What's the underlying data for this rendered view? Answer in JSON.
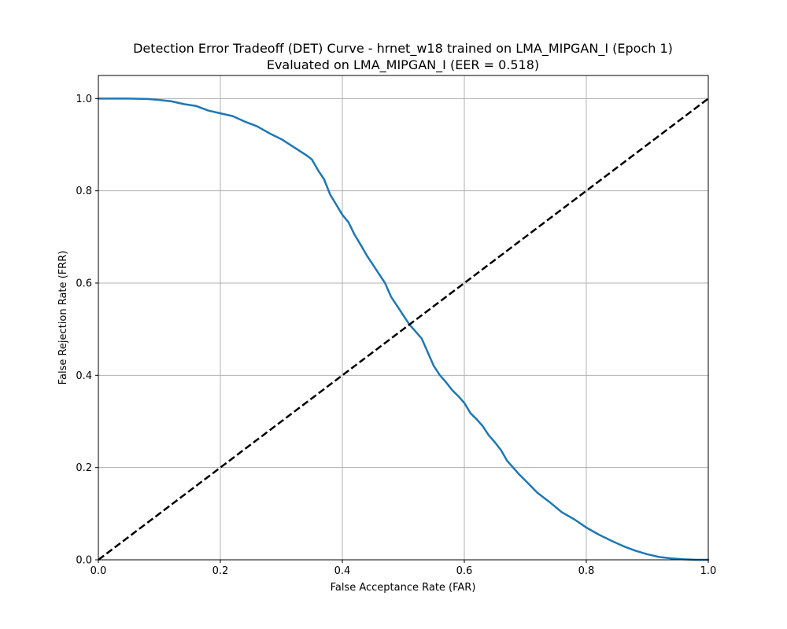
{
  "chart_data": {
    "type": "line",
    "title": "Detection Error Tradeoff (DET) Curve - hrnet_w18 trained on LMA_MIPGAN_I (Epoch 1)",
    "subtitle": "Evaluated on LMA_MIPGAN_I (EER = 0.518)",
    "xlabel": "False Acceptance Rate (FAR)",
    "ylabel": "False Rejection Rate (FRR)",
    "xlim": [
      0.0,
      1.0
    ],
    "ylim": [
      0.0,
      1.05
    ],
    "xticks": [
      0.0,
      0.2,
      0.4,
      0.6,
      0.8,
      1.0
    ],
    "yticks": [
      0.0,
      0.2,
      0.4,
      0.6,
      0.8,
      1.0
    ],
    "xtick_labels": [
      "0.0",
      "0.2",
      "0.4",
      "0.6",
      "0.8",
      "1.0"
    ],
    "ytick_labels": [
      "0.0",
      "0.2",
      "0.4",
      "0.6",
      "0.8",
      "1.0"
    ],
    "grid": true,
    "colors": {
      "curve": "#1f77b4",
      "reference": "#000000",
      "grid": "#b0b0b0"
    },
    "series": [
      {
        "style": "solid",
        "x": [
          0.0,
          0.02,
          0.05,
          0.08,
          0.1,
          0.12,
          0.14,
          0.16,
          0.18,
          0.2,
          0.22,
          0.24,
          0.26,
          0.28,
          0.3,
          0.32,
          0.34,
          0.35,
          0.36,
          0.37,
          0.38,
          0.39,
          0.4,
          0.41,
          0.42,
          0.43,
          0.44,
          0.45,
          0.46,
          0.47,
          0.48,
          0.49,
          0.5,
          0.51,
          0.52,
          0.53,
          0.54,
          0.55,
          0.56,
          0.57,
          0.58,
          0.59,
          0.6,
          0.61,
          0.62,
          0.63,
          0.64,
          0.65,
          0.66,
          0.67,
          0.68,
          0.69,
          0.7,
          0.72,
          0.74,
          0.76,
          0.78,
          0.8,
          0.82,
          0.84,
          0.86,
          0.88,
          0.9,
          0.92,
          0.94,
          0.96,
          0.98,
          1.0
        ],
        "y": [
          1.0,
          1.0,
          1.0,
          0.999,
          0.997,
          0.994,
          0.988,
          0.984,
          0.974,
          0.968,
          0.962,
          0.95,
          0.94,
          0.925,
          0.912,
          0.895,
          0.878,
          0.868,
          0.845,
          0.825,
          0.792,
          0.77,
          0.748,
          0.732,
          0.705,
          0.683,
          0.66,
          0.64,
          0.62,
          0.6,
          0.57,
          0.55,
          0.53,
          0.51,
          0.495,
          0.48,
          0.45,
          0.42,
          0.4,
          0.385,
          0.368,
          0.355,
          0.34,
          0.318,
          0.305,
          0.29,
          0.27,
          0.255,
          0.238,
          0.215,
          0.2,
          0.185,
          0.172,
          0.145,
          0.125,
          0.103,
          0.088,
          0.07,
          0.055,
          0.042,
          0.03,
          0.02,
          0.012,
          0.006,
          0.003,
          0.001,
          0.0,
          0.0
        ]
      },
      {
        "style": "dashed",
        "x": [
          0.0,
          1.0
        ],
        "y": [
          0.0,
          1.0
        ]
      }
    ]
  }
}
